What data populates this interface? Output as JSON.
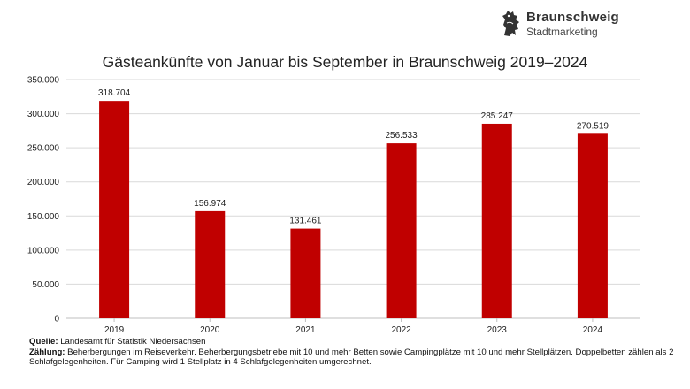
{
  "brand": {
    "name": "Braunschweig",
    "sub": "Stadtmarketing"
  },
  "chart_data": {
    "type": "bar",
    "title": "Gästeankünfte von Januar bis September in Braunschweig 2019–2024",
    "categories": [
      "2019",
      "2020",
      "2021",
      "2022",
      "2023",
      "2024"
    ],
    "values": [
      318704,
      156974,
      131461,
      256533,
      285247,
      270519
    ],
    "value_labels": [
      "318.704",
      "156.974",
      "131.461",
      "256.533",
      "285.247",
      "270.519"
    ],
    "ylim": [
      0,
      350000
    ],
    "yticks": [
      0,
      50000,
      100000,
      150000,
      200000,
      250000,
      300000,
      350000
    ],
    "ytick_labels": [
      "0",
      "50.000",
      "100.000",
      "150.000",
      "200.000",
      "250.000",
      "300.000",
      "350.000"
    ],
    "grid": true,
    "xlabel": "",
    "ylabel": "",
    "colors": {
      "bar": "#c00000",
      "grid": "#d9d9d9",
      "axis": "#bfbfbf"
    }
  },
  "notes": {
    "source_label": "Quelle:",
    "source_text": " Landesamt für Statistik Niedersachsen",
    "count_label": "Zählung:",
    "count_text": " Beherbergungen im Reiseverkehr. Beherbergungsbetriebe mit 10 und mehr Betten sowie Campingplätze mit 10 und mehr Stellplätzen. Doppelbetten zählen als 2 Schlafgelegenheiten. Für Camping wird 1 Stellplatz in 4 Schlafgelegenheiten umgerechnet."
  }
}
